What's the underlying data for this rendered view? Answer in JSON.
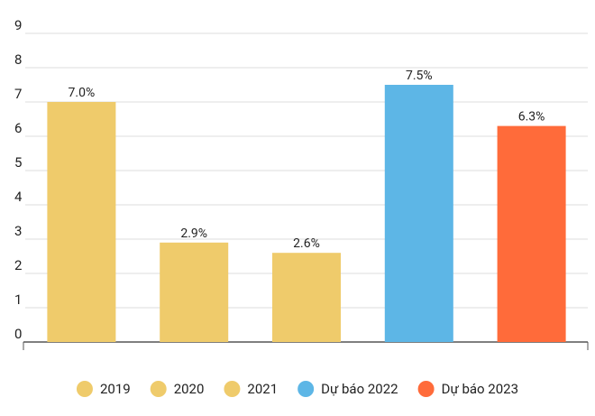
{
  "chart_data": {
    "type": "bar",
    "categories": [
      null
    ],
    "series": [
      {
        "name": "2019",
        "color": "#efcb6b",
        "values": [
          7.0
        ],
        "value_labels": [
          "7.0%"
        ]
      },
      {
        "name": "2020",
        "color": "#efcb6b",
        "values": [
          2.9
        ],
        "value_labels": [
          "2.9%"
        ]
      },
      {
        "name": "2021",
        "color": "#efcb6b",
        "values": [
          2.6
        ],
        "value_labels": [
          "2.6%"
        ]
      },
      {
        "name": "Dự báo 2022",
        "color": "#5db6e6",
        "values": [
          7.5
        ],
        "value_labels": [
          "7.5%"
        ]
      },
      {
        "name": "Dự báo 2023",
        "color": "#ff6b3a",
        "values": [
          6.3
        ],
        "value_labels": [
          "6.3%"
        ]
      }
    ],
    "ylim": [
      0,
      9
    ],
    "yticks": [
      0,
      1,
      2,
      3,
      4,
      5,
      6,
      7,
      8,
      9
    ],
    "grid": true,
    "legend": "bottom"
  }
}
